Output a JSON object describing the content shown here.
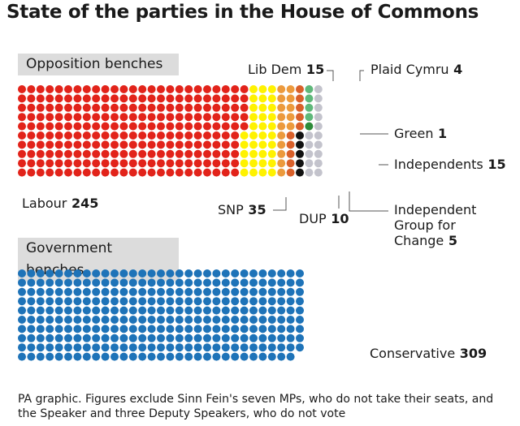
{
  "title": "State of the parties in the House of Commons",
  "opposition_label": "Opposition benches",
  "government_label": "Government benches",
  "footnote": "PA graphic. Figures exclude Sinn Fein's seven MPs, who do not take their seats, and the Speaker and three Deputy Speakers, who do not vote",
  "chart_data": {
    "type": "waffle",
    "unit": "seats",
    "groups": [
      {
        "name": "Opposition benches",
        "parties": [
          {
            "name": "Labour",
            "seats": 245,
            "color": "#e2231a"
          },
          {
            "name": "SNP",
            "seats": 35,
            "color": "#fff200"
          },
          {
            "name": "Lib Dem",
            "seats": 15,
            "color": "#ec9a3d"
          },
          {
            "name": "DUP",
            "seats": 10,
            "color": "#d9602a"
          },
          {
            "name": "Independent Group for Change",
            "seats": 5,
            "color": "#111111"
          },
          {
            "name": "Plaid Cymru",
            "seats": 4,
            "color": "#5fb87a"
          },
          {
            "name": "Green",
            "seats": 1,
            "color": "#2e8b3a"
          },
          {
            "name": "Independents",
            "seats": 15,
            "color": "#c3c3cc"
          }
        ]
      },
      {
        "name": "Government benches",
        "parties": [
          {
            "name": "Conservative",
            "seats": 309,
            "color": "#1e73b8"
          }
        ]
      }
    ]
  }
}
